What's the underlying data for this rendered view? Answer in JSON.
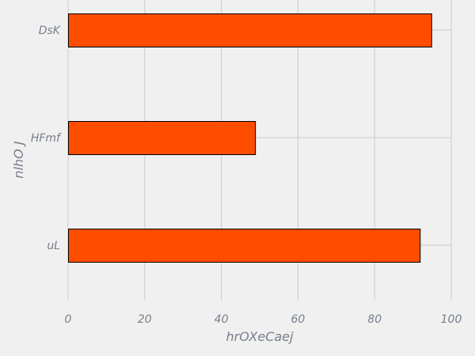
{
  "chart_data": {
    "type": "bar",
    "orientation": "horizontal",
    "categories": [
      "DsK",
      "HFmf",
      "uL"
    ],
    "values": [
      95,
      49,
      92
    ],
    "xlabel": "hrOXeCaej",
    "ylabel": "nlhO J",
    "xlim": [
      0,
      100
    ],
    "xticks": [
      "0",
      "20",
      "40",
      "60",
      "80",
      "100"
    ],
    "grid": true,
    "bar_color": "#ff4d00",
    "bar_edge_color": "#000000",
    "background_color": "#f0f0f0",
    "grid_color": "#cbcbcb",
    "text_color": "#777f8c"
  }
}
